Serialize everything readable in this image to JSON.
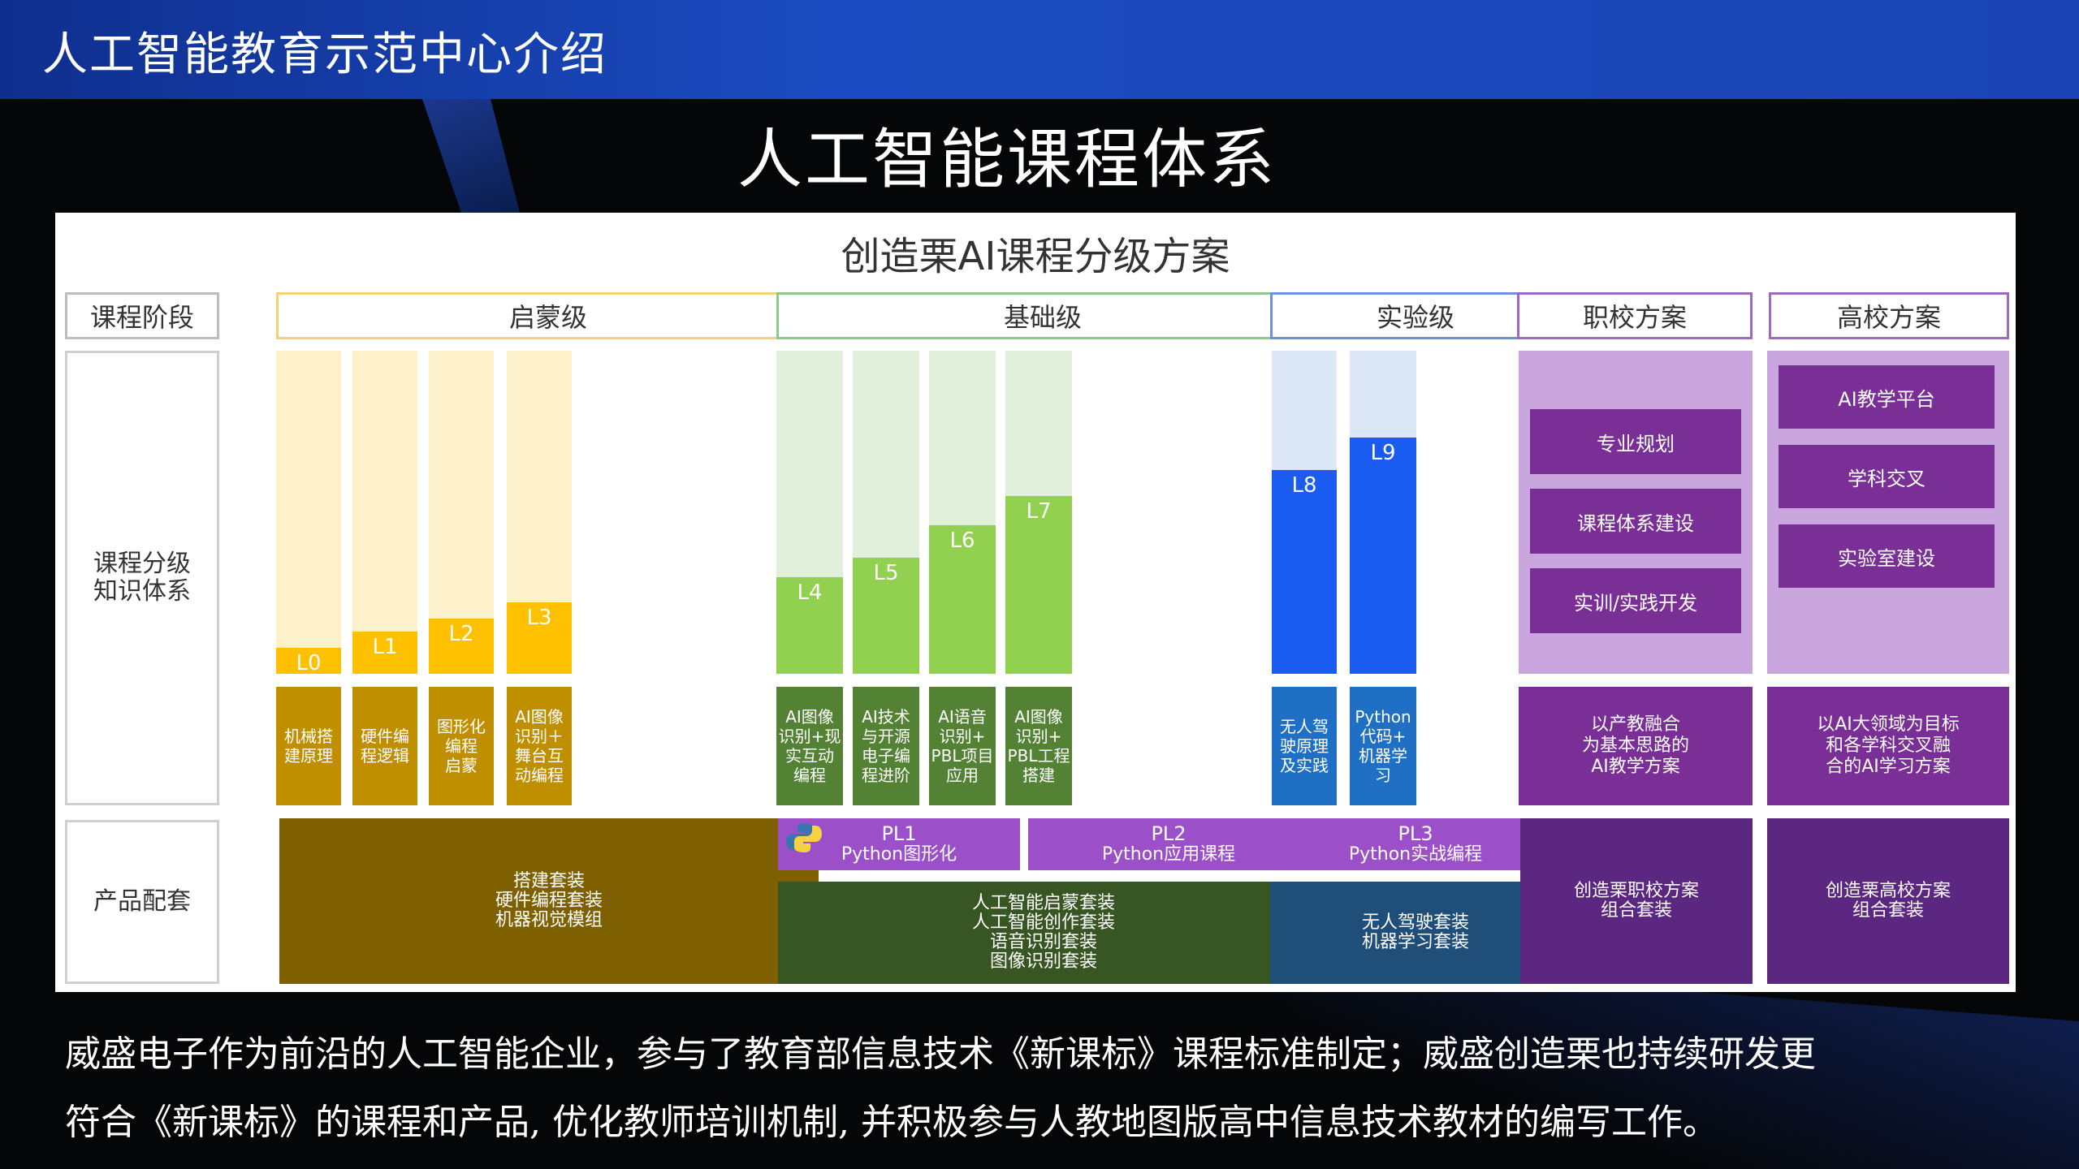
{
  "header": {
    "title": "人工智能教育示范中心介绍"
  },
  "heading": "人工智能课程体系",
  "panel": {
    "title": "创造栗AI课程分级方案",
    "row_labels": {
      "stage": "课程阶段",
      "knowledge": [
        "课程分级",
        "知识体系"
      ],
      "product": "产品配套"
    },
    "stages": {
      "qimeng": "启蒙级",
      "jichu": "基础级",
      "shiyan": "实验级",
      "zhixiao": "职校方案",
      "gaoxiao": "高校方案"
    },
    "levels": [
      {
        "label": "L0",
        "fill": 0.08,
        "desc": [
          "机械搭",
          "建原理"
        ]
      },
      {
        "label": "L1",
        "fill": 0.13,
        "desc": [
          "硬件编",
          "程逻辑"
        ]
      },
      {
        "label": "L2",
        "fill": 0.17,
        "desc": [
          "图形化",
          "编程",
          "启蒙"
        ]
      },
      {
        "label": "L3",
        "fill": 0.22,
        "desc": [
          "AI图像",
          "识别＋",
          "舞台互",
          "动编程"
        ]
      },
      {
        "label": "L4",
        "fill": 0.3,
        "desc": [
          "AI图像",
          "识别+现",
          "实互动",
          "编程"
        ]
      },
      {
        "label": "L5",
        "fill": 0.36,
        "desc": [
          "AI技术",
          "与开源",
          "电子编",
          "程进阶"
        ]
      },
      {
        "label": "L6",
        "fill": 0.46,
        "desc": [
          "AI语音",
          "识别+",
          "PBL项目",
          "应用"
        ]
      },
      {
        "label": "L7",
        "fill": 0.55,
        "desc": [
          "AI图像",
          "识别+",
          "PBL工程",
          "搭建"
        ]
      },
      {
        "label": "L8",
        "fill": 0.63,
        "desc": [
          "无人驾",
          "驶原理",
          "及实践"
        ]
      },
      {
        "label": "L9",
        "fill": 0.73,
        "desc": [
          "Python",
          "代码+",
          "机器学",
          "习"
        ]
      }
    ],
    "zhixiao_items": [
      "专业规划",
      "课程体系建设",
      "实训/实践开发"
    ],
    "gaoxiao_items": [
      "AI教学平台",
      "学科交叉",
      "实验室建设"
    ],
    "zhixiao_desc": [
      "以产教融合",
      "为基本思路的",
      "AI教学方案"
    ],
    "gaoxiao_desc": [
      "以AI大领域为目标",
      "和各学科交叉融",
      "合的AI学习方案"
    ],
    "pl": [
      {
        "code": "PL1",
        "name": "Python图形化"
      },
      {
        "code": "PL2",
        "name": "Python应用课程"
      },
      {
        "code": "PL3",
        "name": "Python实战编程"
      }
    ],
    "products": {
      "qimeng": [
        "搭建套装",
        "硬件编程套装",
        "机器视觉模组"
      ],
      "jichu": [
        "人工智能启蒙套装",
        "人工智能创作套装",
        "语音识别套装",
        "图像识别套装"
      ],
      "shiyan": [
        "无人驾驶套装",
        "机器学习套装"
      ],
      "zhixiao": [
        "创造栗职校方案",
        "组合套装"
      ],
      "gaoxiao": [
        "创造栗高校方案",
        "组合套装"
      ]
    },
    "colors": {
      "yellow_bg": "#fdf1cc",
      "yellow_bar": "#ffc000",
      "yellow_desc": "#bf8f00",
      "yellow_prod": "#7f6000",
      "green_bg": "#e2efda",
      "green_bar": "#92d050",
      "green_desc": "#548235",
      "green_prod": "#375623",
      "blue_bg": "#dde8f6",
      "blue_bar": "#1a5cf0",
      "blue_desc": "#1f6fc5",
      "blue_prod": "#1f4e79",
      "purple_bg": "#c9a6de",
      "purple_box": "#7a2f96",
      "purple_prod": "#5b2780",
      "pl_bg": "#9b4fc8"
    }
  },
  "paragraph": [
    "威盛电子作为前沿的人工智能企业，参与了教育部信息技术《新课标》课程标准制定；威盛创造栗也持续研发更",
    "符合《新课标》的课程和产品, 优化教师培训机制, 并积极参与人教地图版高中信息技术教材的编写工作。"
  ]
}
